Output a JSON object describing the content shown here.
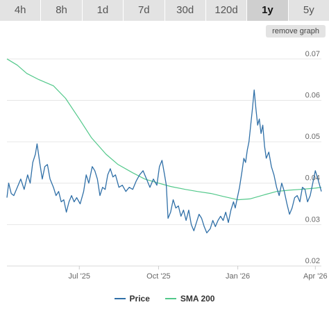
{
  "timeframes": [
    {
      "label": "4h",
      "active": false
    },
    {
      "label": "8h",
      "active": false
    },
    {
      "label": "1d",
      "active": false
    },
    {
      "label": "7d",
      "active": false
    },
    {
      "label": "30d",
      "active": false
    },
    {
      "label": "120d",
      "active": false
    },
    {
      "label": "1y",
      "active": true
    },
    {
      "label": "5y",
      "active": false
    }
  ],
  "remove_graph_label": "remove graph",
  "colors": {
    "price": "#2f6fa7",
    "sma": "#52c88a",
    "grid": "#e6e6e6",
    "tab_bg": "#e3e3e3",
    "tab_active": "#cfcfcf"
  },
  "chart_data": {
    "type": "line",
    "x_range": [
      "2025-04-08",
      "2026-04-08"
    ],
    "ylim": [
      0.02,
      0.075
    ],
    "y_ticks": [
      0.02,
      0.03,
      0.04,
      0.05,
      0.06,
      0.07
    ],
    "y_tick_labels": [
      "0.02",
      "0.03",
      "0.04",
      "0.05",
      "0.06",
      "0.07"
    ],
    "x_ticks": [
      {
        "date": "2025-07-01",
        "label": "Jul '25"
      },
      {
        "date": "2025-10-01",
        "label": "Oct '25"
      },
      {
        "date": "2026-01-01",
        "label": "Jan '26"
      },
      {
        "date": "2026-04-01",
        "label": "Apr '26"
      }
    ],
    "grid": true,
    "legend_position": "bottom",
    "series": [
      {
        "name": "Price",
        "points": [
          [
            "2025-04-08",
            0.0365
          ],
          [
            "2025-04-10",
            0.04
          ],
          [
            "2025-04-13",
            0.0375
          ],
          [
            "2025-04-16",
            0.037
          ],
          [
            "2025-04-20",
            0.039
          ],
          [
            "2025-04-24",
            0.041
          ],
          [
            "2025-04-28",
            0.0385
          ],
          [
            "2025-05-02",
            0.042
          ],
          [
            "2025-05-05",
            0.04
          ],
          [
            "2025-05-08",
            0.045
          ],
          [
            "2025-05-11",
            0.047
          ],
          [
            "2025-05-13",
            0.0495
          ],
          [
            "2025-05-16",
            0.045
          ],
          [
            "2025-05-19",
            0.041
          ],
          [
            "2025-05-22",
            0.044
          ],
          [
            "2025-05-25",
            0.0445
          ],
          [
            "2025-05-28",
            0.041
          ],
          [
            "2025-06-01",
            0.039
          ],
          [
            "2025-06-04",
            0.037
          ],
          [
            "2025-06-07",
            0.038
          ],
          [
            "2025-06-10",
            0.0355
          ],
          [
            "2025-06-13",
            0.036
          ],
          [
            "2025-06-16",
            0.033
          ],
          [
            "2025-06-19",
            0.0355
          ],
          [
            "2025-06-22",
            0.037
          ],
          [
            "2025-06-25",
            0.0355
          ],
          [
            "2025-06-28",
            0.0365
          ],
          [
            "2025-07-02",
            0.035
          ],
          [
            "2025-07-06",
            0.038
          ],
          [
            "2025-07-09",
            0.042
          ],
          [
            "2025-07-12",
            0.04
          ],
          [
            "2025-07-16",
            0.044
          ],
          [
            "2025-07-19",
            0.043
          ],
          [
            "2025-07-22",
            0.041
          ],
          [
            "2025-07-25",
            0.037
          ],
          [
            "2025-07-28",
            0.039
          ],
          [
            "2025-07-31",
            0.0385
          ],
          [
            "2025-08-03",
            0.042
          ],
          [
            "2025-08-06",
            0.0435
          ],
          [
            "2025-08-09",
            0.0415
          ],
          [
            "2025-08-12",
            0.042
          ],
          [
            "2025-08-16",
            0.039
          ],
          [
            "2025-08-20",
            0.0395
          ],
          [
            "2025-08-24",
            0.038
          ],
          [
            "2025-08-28",
            0.039
          ],
          [
            "2025-09-01",
            0.0385
          ],
          [
            "2025-09-05",
            0.0405
          ],
          [
            "2025-09-09",
            0.042
          ],
          [
            "2025-09-13",
            0.043
          ],
          [
            "2025-09-17",
            0.041
          ],
          [
            "2025-09-21",
            0.039
          ],
          [
            "2025-09-25",
            0.041
          ],
          [
            "2025-09-29",
            0.0395
          ],
          [
            "2025-10-02",
            0.044
          ],
          [
            "2025-10-05",
            0.0455
          ],
          [
            "2025-10-08",
            0.042
          ],
          [
            "2025-10-10",
            0.0395
          ],
          [
            "2025-10-12",
            0.0315
          ],
          [
            "2025-10-15",
            0.033
          ],
          [
            "2025-10-18",
            0.036
          ],
          [
            "2025-10-21",
            0.034
          ],
          [
            "2025-10-24",
            0.0345
          ],
          [
            "2025-10-27",
            0.032
          ],
          [
            "2025-10-30",
            0.0335
          ],
          [
            "2025-11-02",
            0.031
          ],
          [
            "2025-11-05",
            0.0335
          ],
          [
            "2025-11-08",
            0.03
          ],
          [
            "2025-11-11",
            0.0285
          ],
          [
            "2025-11-14",
            0.0305
          ],
          [
            "2025-11-17",
            0.0325
          ],
          [
            "2025-11-20",
            0.0315
          ],
          [
            "2025-11-23",
            0.0295
          ],
          [
            "2025-11-26",
            0.028
          ],
          [
            "2025-11-30",
            0.029
          ],
          [
            "2025-12-03",
            0.031
          ],
          [
            "2025-12-06",
            0.0295
          ],
          [
            "2025-12-09",
            0.031
          ],
          [
            "2025-12-12",
            0.032
          ],
          [
            "2025-12-15",
            0.031
          ],
          [
            "2025-12-18",
            0.033
          ],
          [
            "2025-12-21",
            0.0305
          ],
          [
            "2025-12-24",
            0.0335
          ],
          [
            "2025-12-27",
            0.0355
          ],
          [
            "2025-12-29",
            0.034
          ],
          [
            "2026-01-01",
            0.037
          ],
          [
            "2026-01-03",
            0.039
          ],
          [
            "2026-01-06",
            0.043
          ],
          [
            "2026-01-08",
            0.046
          ],
          [
            "2026-01-10",
            0.045
          ],
          [
            "2026-01-12",
            0.048
          ],
          [
            "2026-01-14",
            0.05
          ],
          [
            "2026-01-16",
            0.054
          ],
          [
            "2026-01-18",
            0.058
          ],
          [
            "2026-01-20",
            0.0625
          ],
          [
            "2026-01-22",
            0.058
          ],
          [
            "2026-01-24",
            0.054
          ],
          [
            "2026-01-26",
            0.0555
          ],
          [
            "2026-01-28",
            0.052
          ],
          [
            "2026-01-30",
            0.054
          ],
          [
            "2026-02-01",
            0.049
          ],
          [
            "2026-02-03",
            0.046
          ],
          [
            "2026-02-06",
            0.0475
          ],
          [
            "2026-02-09",
            0.044
          ],
          [
            "2026-02-12",
            0.042
          ],
          [
            "2026-02-15",
            0.039
          ],
          [
            "2026-02-18",
            0.037
          ],
          [
            "2026-02-21",
            0.04
          ],
          [
            "2026-02-24",
            0.038
          ],
          [
            "2026-02-27",
            0.035
          ],
          [
            "2026-03-02",
            0.0325
          ],
          [
            "2026-03-05",
            0.034
          ],
          [
            "2026-03-08",
            0.0365
          ],
          [
            "2026-03-11",
            0.037
          ],
          [
            "2026-03-14",
            0.0355
          ],
          [
            "2026-03-17",
            0.039
          ],
          [
            "2026-03-20",
            0.0385
          ],
          [
            "2026-03-23",
            0.0355
          ],
          [
            "2026-03-26",
            0.037
          ],
          [
            "2026-03-29",
            0.04
          ],
          [
            "2026-04-01",
            0.043
          ],
          [
            "2026-04-04",
            0.041
          ],
          [
            "2026-04-06",
            0.0395
          ],
          [
            "2026-04-08",
            0.038
          ]
        ]
      },
      {
        "name": "SMA 200",
        "points": [
          [
            "2025-04-08",
            0.07
          ],
          [
            "2025-04-20",
            0.0685
          ],
          [
            "2025-05-01",
            0.0665
          ],
          [
            "2025-05-15",
            0.065
          ],
          [
            "2025-06-01",
            0.0635
          ],
          [
            "2025-06-15",
            0.0605
          ],
          [
            "2025-07-01",
            0.0555
          ],
          [
            "2025-07-15",
            0.051
          ],
          [
            "2025-08-01",
            0.047
          ],
          [
            "2025-08-15",
            0.0445
          ],
          [
            "2025-09-01",
            0.0425
          ],
          [
            "2025-09-15",
            0.041
          ],
          [
            "2025-10-01",
            0.04
          ],
          [
            "2025-10-15",
            0.0392
          ],
          [
            "2025-11-01",
            0.0385
          ],
          [
            "2025-11-15",
            0.038
          ],
          [
            "2025-12-01",
            0.0375
          ],
          [
            "2025-12-15",
            0.0368
          ],
          [
            "2026-01-01",
            0.036
          ],
          [
            "2026-01-15",
            0.0362
          ],
          [
            "2026-02-01",
            0.0372
          ],
          [
            "2026-02-15",
            0.038
          ],
          [
            "2026-03-01",
            0.0383
          ],
          [
            "2026-03-15",
            0.0385
          ],
          [
            "2026-04-01",
            0.0388
          ],
          [
            "2026-04-08",
            0.039
          ]
        ]
      }
    ]
  }
}
